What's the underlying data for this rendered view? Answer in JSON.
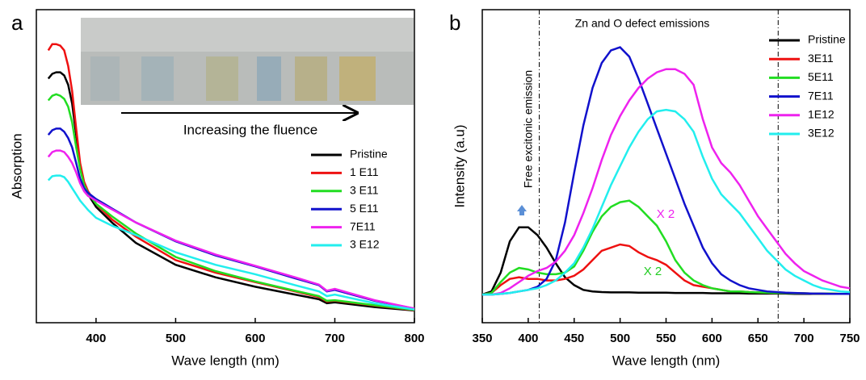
{
  "chart_data": [
    {
      "type": "line",
      "panel": "a",
      "xlabel": "Wave length (nm)",
      "ylabel": "Absorption",
      "xlim": [
        325,
        800
      ],
      "ylim": [
        0,
        10
      ],
      "xticks": [
        400,
        500,
        600,
        700,
        800
      ],
      "annotations": [
        "Increasing the fluence"
      ],
      "x": [
        340,
        345,
        350,
        355,
        360,
        365,
        370,
        375,
        380,
        385,
        390,
        400,
        420,
        450,
        500,
        550,
        600,
        650,
        680,
        690,
        700,
        750,
        800
      ],
      "series": [
        {
          "name": "Pristine",
          "color": "#000000",
          "values": [
            7.8,
            7.95,
            8.0,
            8.0,
            7.9,
            7.6,
            7.0,
            6.0,
            5.0,
            4.4,
            4.1,
            3.7,
            3.2,
            2.55,
            1.85,
            1.45,
            1.15,
            0.9,
            0.75,
            0.62,
            0.65,
            0.5,
            0.39
          ]
        },
        {
          "name": "1 E11",
          "color": "#ee1111",
          "values": [
            8.7,
            8.9,
            8.9,
            8.85,
            8.7,
            8.2,
            7.4,
            6.2,
            5.1,
            4.5,
            4.2,
            3.8,
            3.3,
            2.75,
            2.0,
            1.6,
            1.3,
            1.0,
            0.82,
            0.68,
            0.7,
            0.55,
            0.4
          ]
        },
        {
          "name": "3 E11",
          "color": "#22dd22",
          "values": [
            7.1,
            7.25,
            7.3,
            7.25,
            7.15,
            6.9,
            6.4,
            5.6,
            4.9,
            4.4,
            4.15,
            3.8,
            3.4,
            2.85,
            2.1,
            1.65,
            1.32,
            1.02,
            0.85,
            0.7,
            0.72,
            0.56,
            0.41
          ]
        },
        {
          "name": "5 E11",
          "color": "#1111cc",
          "values": [
            6.0,
            6.15,
            6.2,
            6.2,
            6.1,
            5.9,
            5.6,
            5.1,
            4.6,
            4.3,
            4.15,
            3.95,
            3.65,
            3.2,
            2.6,
            2.15,
            1.8,
            1.42,
            1.2,
            1.0,
            1.05,
            0.7,
            0.45
          ]
        },
        {
          "name": "7E11",
          "color": "#ee22ee",
          "values": [
            5.3,
            5.45,
            5.5,
            5.5,
            5.45,
            5.3,
            5.1,
            4.8,
            4.45,
            4.2,
            4.05,
            3.9,
            3.62,
            3.2,
            2.62,
            2.18,
            1.82,
            1.45,
            1.22,
            1.02,
            1.08,
            0.72,
            0.45
          ]
        },
        {
          "name": "3 E12",
          "color": "#22eeee",
          "values": [
            4.55,
            4.68,
            4.7,
            4.7,
            4.65,
            4.5,
            4.3,
            4.1,
            3.9,
            3.75,
            3.6,
            3.35,
            3.1,
            2.8,
            2.25,
            1.85,
            1.55,
            1.2,
            1.0,
            0.85,
            0.9,
            0.62,
            0.42
          ]
        }
      ]
    },
    {
      "type": "line",
      "panel": "b",
      "xlabel": "Wave length (nm)",
      "ylabel": "Intensity (a.u)",
      "xlim": [
        350,
        750
      ],
      "ylim": [
        0,
        10
      ],
      "xticks": [
        350,
        400,
        450,
        500,
        550,
        600,
        650,
        700,
        750
      ],
      "vlines": [
        412,
        672
      ],
      "annotations": [
        "Zn and O defect emissions",
        "Free excitonic emission",
        "X 2",
        "X 2"
      ],
      "x": [
        350,
        360,
        370,
        380,
        390,
        400,
        410,
        420,
        430,
        440,
        450,
        460,
        470,
        480,
        490,
        500,
        510,
        520,
        530,
        540,
        550,
        560,
        570,
        580,
        590,
        600,
        610,
        620,
        630,
        640,
        650,
        660,
        670,
        680,
        690,
        700,
        710,
        720,
        730,
        740,
        750
      ],
      "series": [
        {
          "name": "Pristine",
          "color": "#000000",
          "values": [
            0.9,
            1.0,
            1.6,
            2.6,
            3.05,
            3.05,
            2.8,
            2.4,
            1.9,
            1.45,
            1.2,
            1.05,
            1.0,
            0.98,
            0.97,
            0.97,
            0.97,
            0.96,
            0.96,
            0.96,
            0.96,
            0.95,
            0.95,
            0.95,
            0.95,
            0.94,
            0.94,
            0.94,
            0.94,
            0.93,
            0.93,
            0.93,
            0.93,
            0.93,
            0.92,
            0.92,
            0.92,
            0.92,
            0.92,
            0.92,
            0.92
          ]
        },
        {
          "name": "3E11",
          "color": "#ee1111",
          "values": [
            0.9,
            0.95,
            1.2,
            1.4,
            1.45,
            1.4,
            1.4,
            1.35,
            1.35,
            1.4,
            1.5,
            1.7,
            2.0,
            2.3,
            2.4,
            2.5,
            2.45,
            2.25,
            2.1,
            2.0,
            1.85,
            1.6,
            1.35,
            1.2,
            1.15,
            1.1,
            1.05,
            1.0,
            1.0,
            0.98,
            0.97,
            0.96,
            0.95,
            0.95,
            0.94,
            0.94,
            0.93,
            0.93,
            0.93,
            0.92,
            0.92
          ]
        },
        {
          "name": "5E11",
          "color": "#22dd22",
          "values": [
            0.9,
            0.95,
            1.3,
            1.6,
            1.75,
            1.7,
            1.6,
            1.55,
            1.55,
            1.6,
            1.8,
            2.3,
            2.9,
            3.4,
            3.7,
            3.85,
            3.9,
            3.7,
            3.4,
            3.1,
            2.6,
            2.0,
            1.6,
            1.35,
            1.2,
            1.1,
            1.05,
            1.0,
            1.0,
            0.98,
            0.97,
            0.96,
            0.95,
            0.95,
            0.94,
            0.94,
            0.93,
            0.93,
            0.93,
            0.92,
            0.92
          ]
        },
        {
          "name": "7E11",
          "color": "#1111cc",
          "values": [
            0.9,
            0.9,
            0.92,
            0.95,
            1.0,
            1.05,
            1.15,
            1.4,
            2.0,
            3.2,
            4.8,
            6.3,
            7.5,
            8.3,
            8.7,
            8.8,
            8.5,
            7.8,
            7.0,
            6.2,
            5.4,
            4.6,
            3.8,
            3.1,
            2.4,
            1.9,
            1.55,
            1.35,
            1.2,
            1.1,
            1.05,
            1.0,
            0.98,
            0.96,
            0.95,
            0.94,
            0.93,
            0.93,
            0.92,
            0.92,
            0.92
          ]
        },
        {
          "name": "1E12",
          "color": "#ee22ee",
          "values": [
            0.9,
            0.9,
            0.95,
            1.1,
            1.3,
            1.5,
            1.65,
            1.75,
            1.95,
            2.3,
            2.8,
            3.5,
            4.3,
            5.2,
            6.0,
            6.6,
            7.1,
            7.5,
            7.8,
            8.0,
            8.1,
            8.1,
            7.95,
            7.6,
            6.5,
            5.6,
            5.1,
            4.8,
            4.4,
            3.9,
            3.4,
            3.0,
            2.6,
            2.2,
            1.9,
            1.65,
            1.5,
            1.35,
            1.25,
            1.15,
            1.1
          ]
        },
        {
          "name": "3E12",
          "color": "#22eeee",
          "values": [
            0.9,
            0.9,
            0.92,
            0.95,
            1.0,
            1.05,
            1.1,
            1.2,
            1.35,
            1.6,
            1.9,
            2.4,
            3.0,
            3.7,
            4.4,
            5.0,
            5.6,
            6.1,
            6.5,
            6.75,
            6.8,
            6.75,
            6.5,
            6.1,
            5.3,
            4.6,
            4.1,
            3.8,
            3.5,
            3.1,
            2.7,
            2.3,
            2.0,
            1.7,
            1.5,
            1.35,
            1.2,
            1.1,
            1.05,
            1.0,
            0.98
          ]
        }
      ]
    }
  ]
}
